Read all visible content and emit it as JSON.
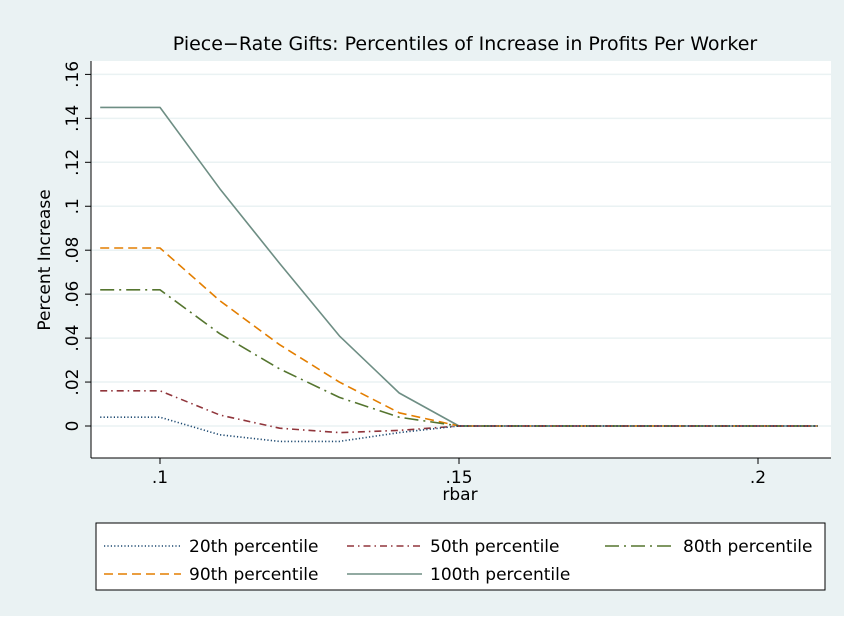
{
  "chart_data": {
    "type": "line",
    "title": "Piece−Rate Gifts: Percentiles of Increase in Profits Per Worker",
    "xlabel": "rbar",
    "ylabel": "Percent Increase",
    "xlim": [
      0.09,
      0.21
    ],
    "ylim": [
      -0.012,
      0.166
    ],
    "xticks": [
      0.1,
      0.15,
      0.2
    ],
    "xtick_labels": [
      ".1",
      ".15",
      ".2"
    ],
    "yticks": [
      0,
      0.02,
      0.04,
      0.06,
      0.08,
      0.1,
      0.12,
      0.14,
      0.16
    ],
    "ytick_labels": [
      "0",
      ".02",
      ".04",
      ".06",
      ".08",
      ".1",
      ".12",
      ".14",
      ".16"
    ],
    "grid": true,
    "legend_position": "bottom",
    "series": [
      {
        "name": "20th percentile",
        "color": "#1a476f",
        "style": "dotted",
        "x": [
          0.09,
          0.1,
          0.11,
          0.12,
          0.13,
          0.14,
          0.15,
          0.16,
          0.17,
          0.18,
          0.19,
          0.2,
          0.21
        ],
        "values": [
          0.004,
          0.004,
          -0.004,
          -0.007,
          -0.007,
          -0.003,
          0,
          0,
          0,
          0,
          0,
          0,
          0
        ]
      },
      {
        "name": "50th percentile",
        "color": "#90353b",
        "style": "dashdot",
        "x": [
          0.09,
          0.1,
          0.11,
          0.12,
          0.13,
          0.14,
          0.15,
          0.16,
          0.17,
          0.18,
          0.19,
          0.2,
          0.21
        ],
        "values": [
          0.016,
          0.016,
          0.005,
          -0.001,
          -0.003,
          -0.002,
          0,
          0,
          0,
          0,
          0,
          0,
          0
        ]
      },
      {
        "name": "80th percentile",
        "color": "#55752f",
        "style": "longdashdot",
        "x": [
          0.09,
          0.1,
          0.11,
          0.12,
          0.13,
          0.14,
          0.15,
          0.16,
          0.17,
          0.18,
          0.19,
          0.2,
          0.21
        ],
        "values": [
          0.062,
          0.062,
          0.042,
          0.026,
          0.013,
          0.004,
          0,
          0,
          0,
          0,
          0,
          0,
          0
        ]
      },
      {
        "name": "90th percentile",
        "color": "#e37e00",
        "style": "dashed",
        "x": [
          0.09,
          0.1,
          0.11,
          0.12,
          0.13,
          0.14,
          0.15,
          0.16,
          0.17,
          0.18,
          0.19,
          0.2,
          0.21
        ],
        "values": [
          0.081,
          0.081,
          0.057,
          0.037,
          0.02,
          0.006,
          0,
          0,
          0,
          0,
          0,
          0,
          0
        ]
      },
      {
        "name": "100th percentile",
        "color": "#6e8e84",
        "style": "solid",
        "x": [
          0.09,
          0.1,
          0.11,
          0.12,
          0.13,
          0.14,
          0.15,
          0.16,
          0.17,
          0.18,
          0.19,
          0.2,
          0.21
        ],
        "values": [
          0.145,
          0.145,
          0.108,
          0.074,
          0.041,
          0.015,
          0,
          0,
          0,
          0,
          0,
          0,
          0
        ]
      }
    ]
  },
  "colors": {
    "outer_background": "#eaf2f3",
    "plot_background": "#ffffff",
    "grid": "#eaf2f3"
  }
}
